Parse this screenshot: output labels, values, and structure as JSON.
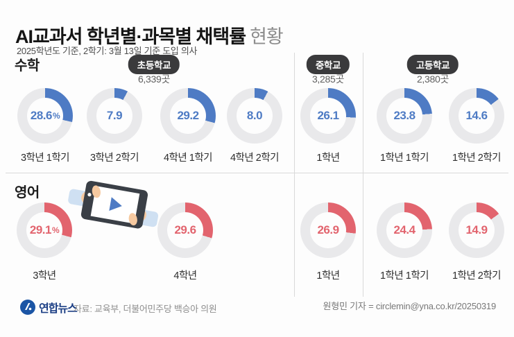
{
  "header": {
    "title_strong": "AI교과서 학년별·과목별 채택률",
    "title_light": "현황",
    "subtitle": "2025학년도 기준, 2학기: 3월 13일 기준 도입 의사"
  },
  "sections": [
    {
      "id": "elementary",
      "name": "초등학교",
      "count": "6,339곳"
    },
    {
      "id": "middle",
      "name": "중학교",
      "count": "3,285곳"
    },
    {
      "id": "high",
      "name": "고등학교",
      "count": "2,380곳"
    }
  ],
  "chart_data": {
    "type": "pie",
    "subtype": "donut-grid",
    "unit": "%",
    "value_range": [
      0,
      100
    ],
    "arc_start": "top",
    "arc_direction": "clockwise",
    "ring_base_color": "#e9e9eb",
    "rows": [
      {
        "id": "math",
        "subject": "수학",
        "color": "#4e7bc4",
        "items": [
          {
            "label": "3학년 1학기",
            "value": 28.6,
            "value_text": "28.6",
            "suffix": "%",
            "section": "초등학교"
          },
          {
            "label": "3학년 2학기",
            "value": 7.9,
            "value_text": "7.9",
            "suffix": "",
            "section": "초등학교"
          },
          {
            "label": "4학년 1학기",
            "value": 29.2,
            "value_text": "29.2",
            "suffix": "",
            "section": "초등학교"
          },
          {
            "label": "4학년 2학기",
            "value": 8.0,
            "value_text": "8.0",
            "suffix": "",
            "section": "초등학교"
          },
          {
            "label": "1학년",
            "value": 26.1,
            "value_text": "26.1",
            "suffix": "",
            "section": "중학교"
          },
          {
            "label": "1학년 1학기",
            "value": 23.8,
            "value_text": "23.8",
            "suffix": "",
            "section": "고등학교"
          },
          {
            "label": "1학년 2학기",
            "value": 14.6,
            "value_text": "14.6",
            "suffix": "",
            "section": "고등학교"
          }
        ]
      },
      {
        "id": "english",
        "subject": "영어",
        "color": "#e2646e",
        "items": [
          {
            "label": "3학년",
            "value": 29.1,
            "value_text": "29.1",
            "suffix": "%",
            "section": "초등학교"
          },
          {
            "label": "4학년",
            "value": 29.6,
            "value_text": "29.6",
            "suffix": "",
            "section": "초등학교"
          },
          {
            "label": "1학년",
            "value": 26.9,
            "value_text": "26.9",
            "suffix": "",
            "section": "중학교"
          },
          {
            "label": "1학년 1학기",
            "value": 24.4,
            "value_text": "24.4",
            "suffix": "",
            "section": "고등학교"
          },
          {
            "label": "1학년 2학기",
            "value": 14.9,
            "value_text": "14.9",
            "suffix": "",
            "section": "고등학교"
          }
        ]
      }
    ]
  },
  "illustration": {
    "name": "hands-holding-tablet-with-play-button",
    "play_color": "#4e7bc4"
  },
  "footer": {
    "logo_text": "연합뉴스",
    "source": "자료: 교육부, 더불어민주당 백승아 의원",
    "credit": "원형민 기자 = circlemin@yna.co.kr/20250319"
  }
}
